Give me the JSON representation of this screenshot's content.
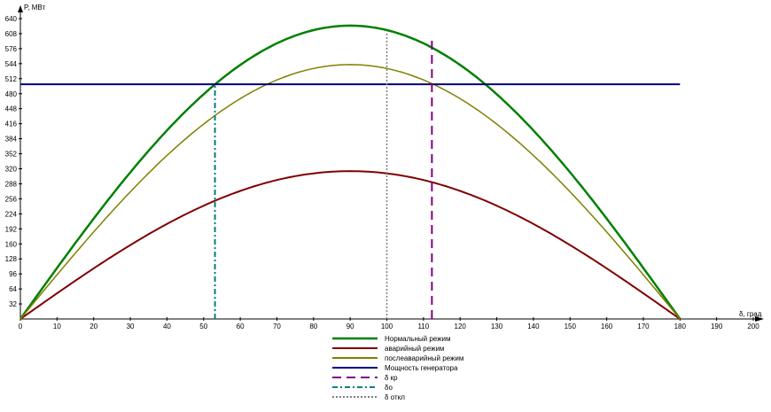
{
  "chart_data": {
    "type": "line",
    "title": "",
    "xlabel": "δ, град",
    "ylabel": "P, МВт",
    "xlim": [
      0,
      200
    ],
    "ylim": [
      0,
      640
    ],
    "x_ticks": [
      0,
      10,
      20,
      30,
      40,
      50,
      60,
      70,
      80,
      90,
      100,
      110,
      120,
      130,
      140,
      150,
      160,
      170,
      180,
      190,
      200
    ],
    "y_ticks": [
      32,
      64,
      96,
      128,
      160,
      192,
      224,
      256,
      288,
      320,
      352,
      384,
      416,
      448,
      480,
      512,
      544,
      576,
      608,
      640
    ],
    "grid": false,
    "legend_position": "bottom",
    "series": [
      {
        "name": "Нормальный режим",
        "kind": "sine",
        "pmax": 625,
        "x_range": [
          0,
          180
        ],
        "color": "#008000",
        "width": 2.5,
        "dash": ""
      },
      {
        "name": "аварийный режим",
        "kind": "sine",
        "pmax": 315,
        "x_range": [
          0,
          180
        ],
        "color": "#800000",
        "width": 2,
        "dash": ""
      },
      {
        "name": "послеаварийный режим",
        "kind": "sine",
        "pmax": 542,
        "x_range": [
          0,
          180
        ],
        "color": "#808000",
        "width": 1.5,
        "dash": ""
      },
      {
        "name": "Мощность генератора",
        "kind": "hline",
        "y": 500,
        "x_range": [
          0,
          180
        ],
        "color": "#000080",
        "width": 2,
        "dash": ""
      },
      {
        "name": "δ кр",
        "kind": "vline",
        "x": 112.3,
        "y_range": [
          0,
          597
        ],
        "color": "#800080",
        "width": 2,
        "dash": "10,6"
      },
      {
        "name": "δо",
        "kind": "vline",
        "x": 53.1,
        "y_range": [
          0,
          500
        ],
        "color": "#008080",
        "width": 2,
        "dash": "6,3,2,3"
      },
      {
        "name": "δ откл",
        "kind": "vline",
        "x": 100,
        "y_range": [
          0,
          610
        ],
        "color": "#808080",
        "width": 1.5,
        "dash": "2,2"
      }
    ]
  }
}
